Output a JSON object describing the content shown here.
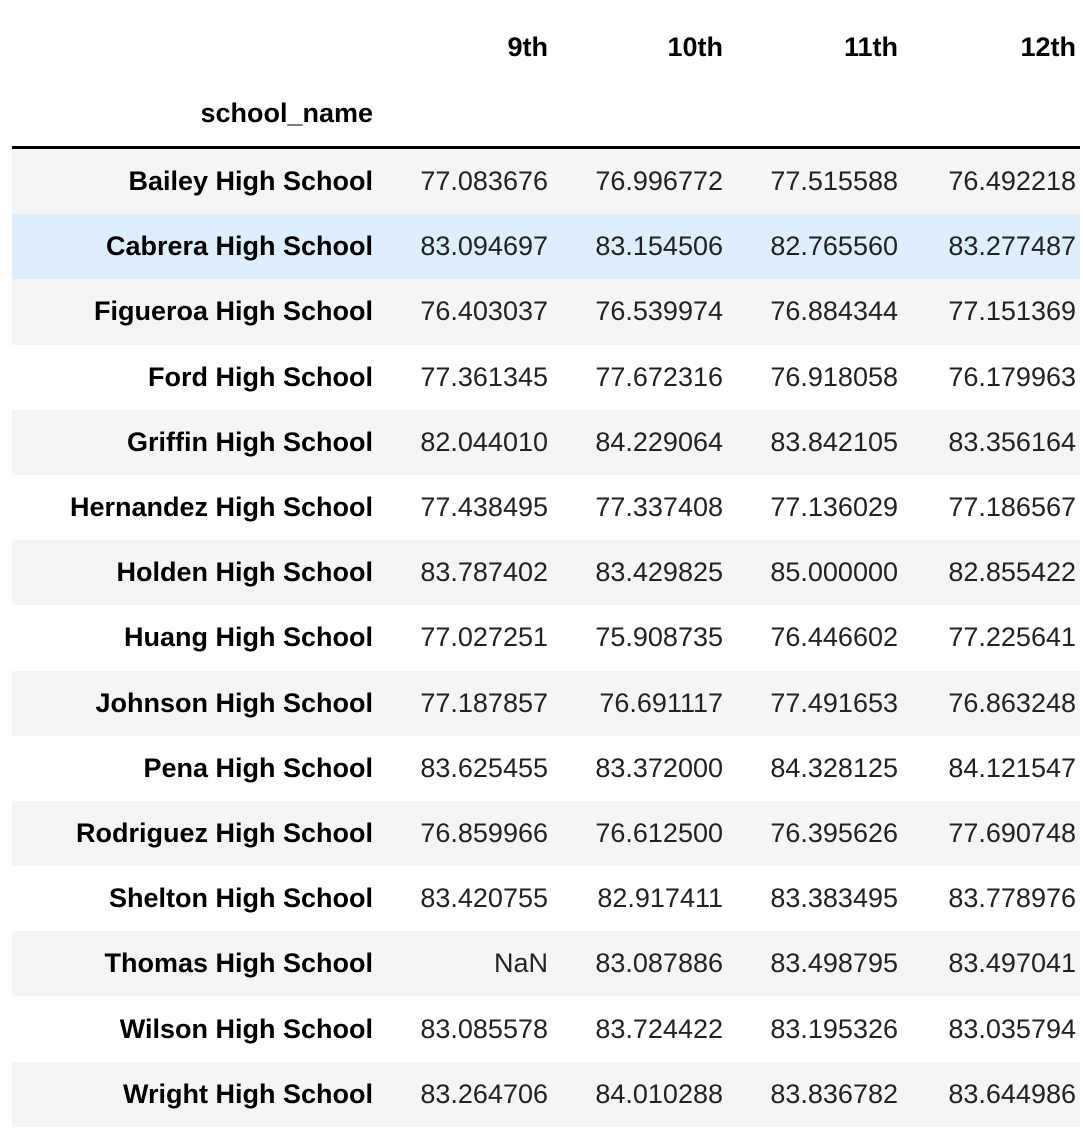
{
  "table": {
    "index_name": "school_name",
    "columns": [
      "9th",
      "10th",
      "11th",
      "12th"
    ],
    "rows": [
      {
        "school": "Bailey High School",
        "values": [
          "77.083676",
          "76.996772",
          "77.515588",
          "76.492218"
        ]
      },
      {
        "school": "Cabrera High School",
        "values": [
          "83.094697",
          "83.154506",
          "82.765560",
          "83.277487"
        ],
        "highlighted": true
      },
      {
        "school": "Figueroa High School",
        "values": [
          "76.403037",
          "76.539974",
          "76.884344",
          "77.151369"
        ]
      },
      {
        "school": "Ford High School",
        "values": [
          "77.361345",
          "77.672316",
          "76.918058",
          "76.179963"
        ]
      },
      {
        "school": "Griffin High School",
        "values": [
          "82.044010",
          "84.229064",
          "83.842105",
          "83.356164"
        ]
      },
      {
        "school": "Hernandez High School",
        "values": [
          "77.438495",
          "77.337408",
          "77.136029",
          "77.186567"
        ]
      },
      {
        "school": "Holden High School",
        "values": [
          "83.787402",
          "83.429825",
          "85.000000",
          "82.855422"
        ]
      },
      {
        "school": "Huang High School",
        "values": [
          "77.027251",
          "75.908735",
          "76.446602",
          "77.225641"
        ]
      },
      {
        "school": "Johnson High School",
        "values": [
          "77.187857",
          "76.691117",
          "77.491653",
          "76.863248"
        ]
      },
      {
        "school": "Pena High School",
        "values": [
          "83.625455",
          "83.372000",
          "84.328125",
          "84.121547"
        ]
      },
      {
        "school": "Rodriguez High School",
        "values": [
          "76.859966",
          "76.612500",
          "76.395626",
          "77.690748"
        ]
      },
      {
        "school": "Shelton High School",
        "values": [
          "83.420755",
          "82.917411",
          "83.383495",
          "83.778976"
        ]
      },
      {
        "school": "Thomas High School",
        "values": [
          "NaN",
          "83.087886",
          "83.498795",
          "83.497041"
        ]
      },
      {
        "school": "Wilson High School",
        "values": [
          "83.085578",
          "83.724422",
          "83.195326",
          "83.035794"
        ]
      },
      {
        "school": "Wright High School",
        "values": [
          "83.264706",
          "84.010288",
          "83.836782",
          "83.644986"
        ]
      }
    ]
  },
  "colors": {
    "row_stripe": "#f5f5f5",
    "row_hover": "#ddeeff",
    "header_rule": "#000000"
  }
}
